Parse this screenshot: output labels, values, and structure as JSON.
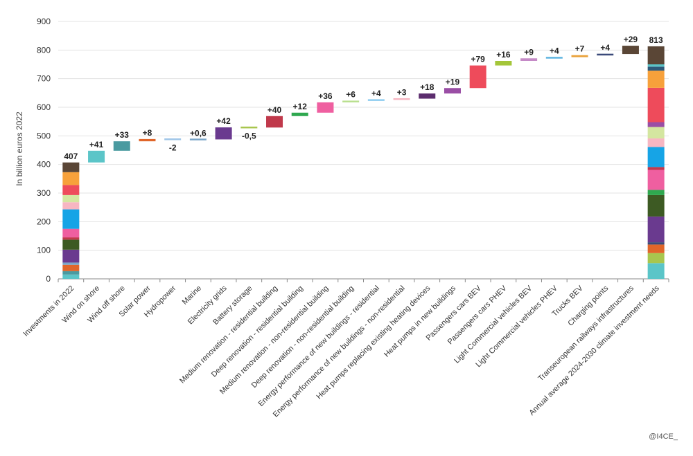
{
  "chart_data": {
    "type": "bar",
    "subtype": "waterfall",
    "ylabel": "In billion euros 2022",
    "ylim": [
      0,
      900
    ],
    "yticks": [
      0,
      100,
      200,
      300,
      400,
      500,
      600,
      700,
      800,
      900
    ],
    "grid": true,
    "categories": [
      "Investments in 2022",
      "Wind on shore",
      "Wind off shore",
      "Solar power",
      "Hydropower",
      "Marine",
      "Electricity grids",
      "Battery storage",
      "Medium renovation - residential building",
      "Deep renovation - residential building",
      "Medium renovation - non-residential building",
      "Deep renovation - non-residential building",
      "Energy performance of new buildings - residential",
      "Energy performance of new buildings - non-residential",
      "Heat pumps replacing existing heating devices",
      "Heat pumps in new buildings",
      "Passengers cars BEV",
      "Passengers cars PHEV",
      "Light Commercial vehicles BEV",
      "Light Commercial vehicles PHEV",
      "Trucks BEV",
      "Charging points",
      "Transeuropean railways infrastructures",
      "Annual average 2024-2030 climate investment needs"
    ],
    "values": [
      407,
      41,
      33,
      8,
      -2,
      0.6,
      42,
      -0.5,
      40,
      12,
      36,
      6,
      4,
      3,
      18,
      19,
      79,
      16,
      9,
      4,
      7,
      4,
      29,
      813
    ],
    "labels": [
      "407",
      "+41",
      "+33",
      "+8",
      "-2",
      "+0,6",
      "+42",
      "-0,5",
      "+40",
      "+12",
      "+36",
      "+6",
      "+4",
      "+3",
      "+18",
      "+19",
      "+79",
      "+16",
      "+9",
      "+4",
      "+7",
      "+4",
      "+29",
      "813"
    ],
    "colors": [
      "#5bc5c8",
      "#4a9aa0",
      "#e0662a",
      "#9fc5e8",
      "#7aa6c8",
      "#6a3a8f",
      "#a8c64e",
      "#c0394b",
      "#2fa84f",
      "#ef5fa0",
      "#b9e08f",
      "#8ecdf0",
      "#f7b6c2",
      "#5c2d6e",
      "#9a4ea5",
      "#ee4b5b",
      "#a4c639",
      "#c58ac7",
      "#5db4e0",
      "#e9a23b",
      "#3b4a7a",
      "#5a4636"
    ],
    "stack_first": [
      {
        "value": 15,
        "color": "#5bc5c8"
      },
      {
        "value": 12,
        "color": "#4a9aa0"
      },
      {
        "value": 22,
        "color": "#e0662a"
      },
      {
        "value": 8,
        "color": "#7aa6c8"
      },
      {
        "value": 45,
        "color": "#6a3a8f"
      },
      {
        "value": 35,
        "color": "#3d5a23"
      },
      {
        "value": 8,
        "color": "#c0394b"
      },
      {
        "value": 30,
        "color": "#ef5fa0"
      },
      {
        "value": 68,
        "color": "#16a4e6"
      },
      {
        "value": 25,
        "color": "#f7b6c2"
      },
      {
        "value": 25,
        "color": "#d4e6a0"
      },
      {
        "value": 35,
        "color": "#ee4b5b"
      },
      {
        "value": 45,
        "color": "#f7a13b"
      },
      {
        "value": 34,
        "color": "#5a4636"
      }
    ],
    "stack_last": [
      {
        "value": 55,
        "color": "#5bc5c8"
      },
      {
        "value": 35,
        "color": "#a8c64e"
      },
      {
        "value": 30,
        "color": "#e0662a"
      },
      {
        "value": 8,
        "color": "#3b4a7a"
      },
      {
        "value": 90,
        "color": "#6a3a8f"
      },
      {
        "value": 75,
        "color": "#3d5a23"
      },
      {
        "value": 18,
        "color": "#2fa84f"
      },
      {
        "value": 70,
        "color": "#ef5fa0"
      },
      {
        "value": 10,
        "color": "#c0394b"
      },
      {
        "value": 70,
        "color": "#16a4e6"
      },
      {
        "value": 30,
        "color": "#f7b6c2"
      },
      {
        "value": 40,
        "color": "#d4e6a0"
      },
      {
        "value": 17,
        "color": "#9a4ea5"
      },
      {
        "value": 120,
        "color": "#ee4b5b"
      },
      {
        "value": 60,
        "color": "#f7a13b"
      },
      {
        "value": 14,
        "color": "#2e5a7a"
      },
      {
        "value": 8,
        "color": "#5bc5c8"
      },
      {
        "value": 63,
        "color": "#5a4636"
      }
    ]
  },
  "credit": "@I4CE_"
}
